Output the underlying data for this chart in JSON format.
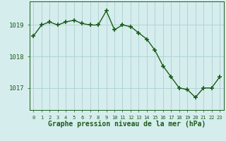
{
  "x": [
    0,
    1,
    2,
    3,
    4,
    5,
    6,
    7,
    8,
    9,
    10,
    11,
    12,
    13,
    14,
    15,
    16,
    17,
    18,
    19,
    20,
    21,
    22,
    23
  ],
  "y": [
    1018.65,
    1019.0,
    1019.1,
    1019.0,
    1019.1,
    1019.15,
    1019.05,
    1019.0,
    1019.0,
    1019.45,
    1018.85,
    1019.0,
    1018.95,
    1018.75,
    1018.55,
    1018.2,
    1017.7,
    1017.35,
    1017.0,
    1016.95,
    1016.7,
    1017.0,
    1017.0,
    1017.35
  ],
  "line_color": "#1a5c1a",
  "marker_color": "#1a5c1a",
  "bg_color": "#d6eded",
  "grid_color": "#b0d4d4",
  "xlabel": "Graphe pression niveau de la mer (hPa)",
  "xlabel_color": "#1a5c1a",
  "yticks": [
    1017,
    1018,
    1019
  ],
  "ylim": [
    1016.3,
    1019.75
  ],
  "xlim": [
    -0.5,
    23.5
  ],
  "xtick_labels": [
    "0",
    "1",
    "2",
    "3",
    "4",
    "5",
    "6",
    "7",
    "8",
    "9",
    "10",
    "11",
    "12",
    "13",
    "14",
    "15",
    "16",
    "17",
    "18",
    "19",
    "20",
    "21",
    "22",
    "23"
  ]
}
